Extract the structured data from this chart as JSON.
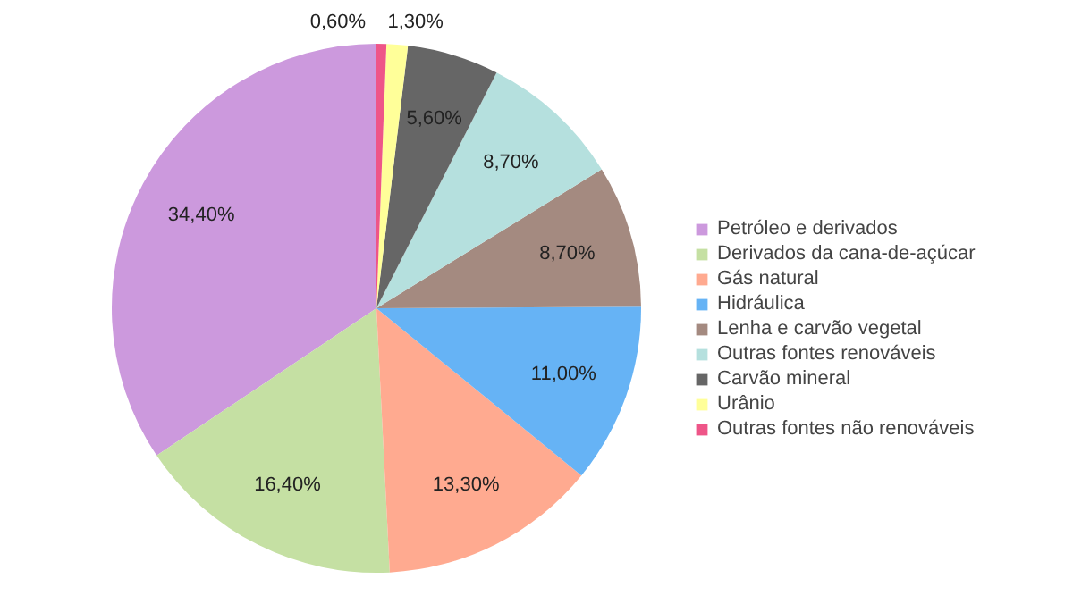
{
  "chart_data": {
    "type": "pie",
    "categories": [
      "Petróleo e derivados",
      "Derivados da cana-de-açúcar",
      "Gás natural",
      "Hidráulica",
      "Lenha e carvão vegetal",
      "Outras fontes renováveis",
      "Carvão mineral",
      "Urânio",
      "Outras fontes não renováveis"
    ],
    "values": [
      34.4,
      16.4,
      13.3,
      11.0,
      8.7,
      8.7,
      5.6,
      1.3,
      0.6
    ],
    "colors": [
      "#cc99dd",
      "#c5e0a3",
      "#ffaa90",
      "#66b3f5",
      "#a48a80",
      "#b5e0de",
      "#666666",
      "#ffff99",
      "#ee5588"
    ],
    "value_labels": [
      "34,40%",
      "16,40%",
      "13,30%",
      "11,00%",
      "8,70%",
      "8,70%",
      "5,60%",
      "1,30%",
      "0,60%"
    ],
    "legend": "right"
  }
}
